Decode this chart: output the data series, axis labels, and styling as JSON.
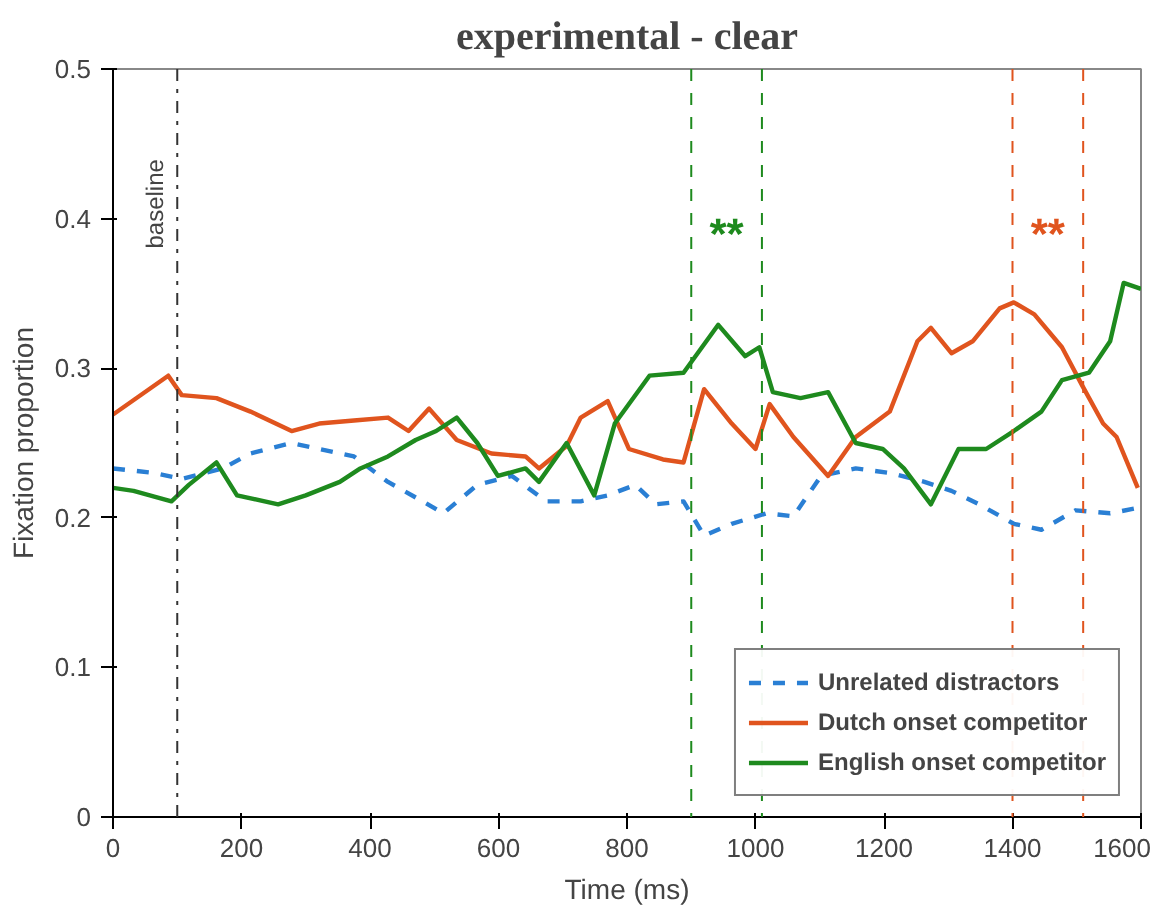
{
  "chart_data": {
    "type": "line",
    "title": "experimental - clear",
    "xlabel": "Time (ms)",
    "ylabel": "Fixation proportion",
    "xlim": [
      0,
      1600
    ],
    "ylim": [
      0,
      0.5
    ],
    "xticks": [
      0,
      200,
      400,
      600,
      800,
      1000,
      1200,
      1400,
      1600
    ],
    "yticks": [
      0,
      0.1,
      0.2,
      0.3,
      0.4,
      0.5
    ],
    "grid": false,
    "legend": "bottom right",
    "series": [
      {
        "name": "Unrelated distractors",
        "color": "#2a7fd4",
        "line_style": "dashed",
        "x": [
          0,
          64,
          107,
          171,
          214,
          278,
          321,
          375,
          428,
          482,
          514,
          567,
          621,
          674,
          728,
          770,
          813,
          845,
          888,
          920,
          963,
          1017,
          1059,
          1102,
          1156,
          1209,
          1263,
          1305,
          1348,
          1402,
          1445,
          1498,
          1552,
          1600
        ],
        "values": [
          0.233,
          0.23,
          0.226,
          0.233,
          0.243,
          0.25,
          0.246,
          0.241,
          0.224,
          0.211,
          0.203,
          0.222,
          0.228,
          0.211,
          0.211,
          0.215,
          0.222,
          0.209,
          0.211,
          0.188,
          0.196,
          0.203,
          0.201,
          0.228,
          0.233,
          0.23,
          0.224,
          0.218,
          0.209,
          0.196,
          0.192,
          0.205,
          0.203,
          0.207
        ]
      },
      {
        "name": "Dutch onset competitor",
        "color": "#e0541e",
        "line_style": "solid",
        "x": [
          0,
          86,
          107,
          161,
          214,
          278,
          321,
          375,
          428,
          460,
          492,
          535,
          589,
          642,
          663,
          706,
          728,
          770,
          803,
          856,
          888,
          920,
          963,
          1000,
          1022,
          1059,
          1113,
          1156,
          1209,
          1252,
          1273,
          1305,
          1338,
          1380,
          1402,
          1434,
          1477,
          1509,
          1541,
          1562,
          1595
        ],
        "values": [
          0.269,
          0.295,
          0.282,
          0.28,
          0.271,
          0.258,
          0.263,
          0.265,
          0.267,
          0.258,
          0.273,
          0.252,
          0.243,
          0.241,
          0.233,
          0.248,
          0.267,
          0.278,
          0.246,
          0.239,
          0.237,
          0.286,
          0.263,
          0.246,
          0.276,
          0.254,
          0.228,
          0.254,
          0.271,
          0.318,
          0.327,
          0.31,
          0.318,
          0.34,
          0.344,
          0.336,
          0.314,
          0.288,
          0.263,
          0.254,
          0.22
        ]
      },
      {
        "name": "English onset competitor",
        "color": "#1e8a1e",
        "line_style": "solid",
        "x": [
          0,
          32,
          91,
          118,
          161,
          193,
          257,
          300,
          353,
          385,
          428,
          471,
          503,
          535,
          567,
          599,
          642,
          663,
          706,
          749,
          781,
          835,
          888,
          942,
          984,
          1006,
          1027,
          1070,
          1113,
          1156,
          1198,
          1231,
          1273,
          1316,
          1359,
          1402,
          1445,
          1477,
          1519,
          1552,
          1573,
          1600
        ],
        "values": [
          0.22,
          0.218,
          0.211,
          0.222,
          0.237,
          0.215,
          0.209,
          0.215,
          0.224,
          0.233,
          0.241,
          0.252,
          0.258,
          0.267,
          0.25,
          0.228,
          0.233,
          0.224,
          0.25,
          0.215,
          0.263,
          0.295,
          0.297,
          0.329,
          0.308,
          0.314,
          0.284,
          0.28,
          0.284,
          0.25,
          0.246,
          0.233,
          0.209,
          0.246,
          0.246,
          0.258,
          0.271,
          0.292,
          0.297,
          0.318,
          0.357,
          0.353
        ]
      }
    ],
    "ref_lines": [
      {
        "axis": "x",
        "value": 100,
        "label": "baseline",
        "color": "#333333",
        "line_style": "dashdot"
      },
      {
        "axis": "x",
        "value": 900,
        "color": "#1e8a1e",
        "line_style": "dashed"
      },
      {
        "axis": "x",
        "value": 1010,
        "color": "#1e8a1e",
        "line_style": "dashed"
      },
      {
        "axis": "x",
        "value": 1400,
        "color": "#e0541e",
        "line_style": "dashed"
      },
      {
        "axis": "x",
        "value": 1510,
        "color": "#e0541e",
        "line_style": "dashed"
      }
    ],
    "annotations": [
      "**",
      "**"
    ]
  }
}
